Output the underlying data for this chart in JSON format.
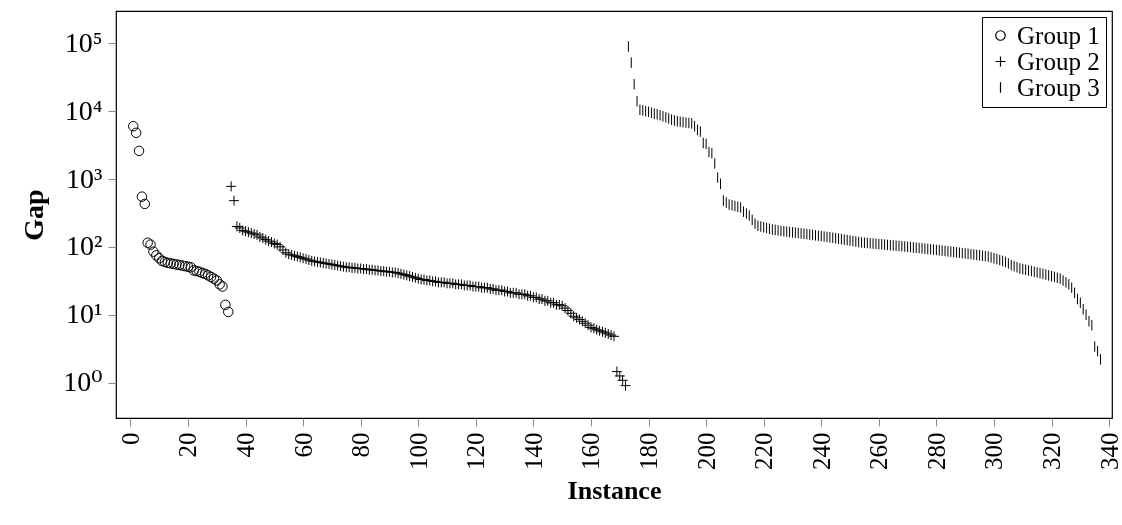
{
  "chart_data": {
    "type": "scatter",
    "xlabel": "Instance",
    "ylabel": "Gap",
    "log": "y",
    "grid": false,
    "legend": "top right",
    "xlim": [
      -5,
      341
    ],
    "xticks": [
      0,
      20,
      40,
      60,
      80,
      100,
      120,
      140,
      160,
      180,
      200,
      220,
      240,
      260,
      280,
      300,
      320,
      340
    ],
    "ylim": [
      0.3,
      300000
    ],
    "yticks": [
      {
        "value": 1,
        "label": "10⁰"
      },
      {
        "value": 10,
        "label": "10¹"
      },
      {
        "value": 100,
        "label": "10²"
      },
      {
        "value": 1000,
        "label": "10³"
      },
      {
        "value": 10000,
        "label": "10⁴"
      },
      {
        "value": 100000,
        "label": "10⁵"
      }
    ],
    "series": [
      {
        "name": "Group 1",
        "color": "#000000",
        "marker": "circle",
        "x": [
          1,
          2,
          3,
          4,
          5,
          6,
          7,
          8,
          9,
          10,
          11,
          12,
          13,
          14,
          15,
          16,
          17,
          18,
          19,
          20,
          21,
          22,
          23,
          24,
          25,
          26,
          27,
          28,
          29,
          30,
          31,
          32,
          33,
          34
        ],
        "values": [
          6000,
          4800,
          2600,
          550,
          430,
          115,
          108,
          85,
          75,
          68,
          62,
          60,
          58,
          57,
          56,
          55,
          54,
          53,
          52,
          51,
          50,
          45,
          44,
          43,
          41,
          40,
          38,
          36,
          34,
          32,
          28,
          26,
          14,
          11
        ]
      },
      {
        "name": "Group 2",
        "color": "#000000",
        "marker": "cross",
        "x": [
          35,
          36,
          37,
          38,
          39,
          40,
          41,
          42,
          43,
          44,
          45,
          46,
          47,
          48,
          49,
          50,
          51,
          52,
          53,
          54,
          55,
          56,
          57,
          58,
          59,
          60,
          61,
          62,
          63,
          64,
          65,
          66,
          67,
          68,
          69,
          70,
          71,
          72,
          73,
          74,
          75,
          76,
          77,
          78,
          79,
          80,
          81,
          82,
          83,
          84,
          85,
          86,
          87,
          88,
          89,
          90,
          91,
          92,
          93,
          94,
          95,
          96,
          97,
          98,
          99,
          100,
          101,
          102,
          103,
          104,
          105,
          106,
          107,
          108,
          109,
          110,
          111,
          112,
          113,
          114,
          115,
          116,
          117,
          118,
          119,
          120,
          121,
          122,
          123,
          124,
          125,
          126,
          127,
          128,
          129,
          130,
          131,
          132,
          133,
          134,
          135,
          136,
          137,
          138,
          139,
          140,
          141,
          142,
          143,
          144,
          145,
          146,
          147,
          148,
          149,
          150,
          151,
          152,
          153,
          154,
          155,
          156,
          157,
          158,
          159,
          160,
          161,
          162,
          163,
          164,
          165,
          166,
          167,
          168,
          169,
          170,
          171,
          172
        ],
        "values": [
          780,
          480,
          200,
          190,
          175,
          170,
          165,
          160,
          155,
          150,
          140,
          135,
          128,
          122,
          118,
          112,
          108,
          100,
          90,
          82,
          78,
          76,
          74,
          72,
          70,
          68,
          66,
          64,
          62,
          61,
          60,
          59,
          58,
          57,
          56,
          55,
          54,
          53,
          52,
          51,
          50,
          50,
          49,
          49,
          48,
          48,
          47,
          47,
          46,
          46,
          45,
          45,
          44,
          44,
          43,
          43,
          42,
          42,
          41,
          40,
          39,
          38,
          37,
          36,
          35,
          34,
          33,
          33,
          32,
          32,
          31,
          31,
          30,
          30,
          30,
          29,
          29,
          29,
          28,
          28,
          28,
          27,
          27,
          27,
          26,
          26,
          26,
          25,
          25,
          25,
          24,
          24,
          23,
          23,
          23,
          22,
          22,
          21,
          21,
          21,
          20,
          20,
          20,
          19,
          19,
          18,
          18,
          17,
          17,
          16,
          16,
          15,
          15,
          14,
          14,
          13.5,
          12.5,
          11.5,
          10.5,
          9.5,
          9,
          8.5,
          8,
          7.5,
          7,
          6.5,
          6.3,
          6,
          5.8,
          5.6,
          5.4,
          5.2,
          5,
          4.8,
          1.45,
          1.25,
          1.08,
          0.9
        ]
      },
      {
        "name": "Group 3",
        "color": "#000000",
        "x": [
          173,
          174,
          175,
          176,
          177,
          178,
          179,
          180,
          181,
          182,
          183,
          184,
          185,
          186,
          187,
          188,
          189,
          190,
          191,
          192,
          193,
          194,
          195,
          196,
          197,
          198,
          199,
          200,
          201,
          202,
          203,
          204,
          205,
          206,
          207,
          208,
          209,
          210,
          211,
          212,
          213,
          214,
          215,
          216,
          217,
          218,
          219,
          220,
          221,
          222,
          223,
          224,
          225,
          226,
          227,
          228,
          229,
          230,
          231,
          232,
          233,
          234,
          235,
          236,
          237,
          238,
          239,
          240,
          241,
          242,
          243,
          244,
          245,
          246,
          247,
          248,
          249,
          250,
          251,
          252,
          253,
          254,
          255,
          256,
          257,
          258,
          259,
          260,
          261,
          262,
          263,
          264,
          265,
          266,
          267,
          268,
          269,
          270,
          271,
          272,
          273,
          274,
          275,
          276,
          277,
          278,
          279,
          280,
          281,
          282,
          283,
          284,
          285,
          286,
          287,
          288,
          289,
          290,
          291,
          292,
          293,
          294,
          295,
          296,
          297,
          298,
          299,
          300,
          301,
          302,
          303,
          304,
          305,
          306,
          307,
          308,
          309,
          310,
          311,
          312,
          313,
          314,
          315,
          316,
          317,
          318,
          319,
          320,
          321,
          322,
          323,
          324,
          325,
          326,
          327,
          328,
          329,
          330,
          331,
          332,
          333,
          334,
          335,
          336,
          337
        ],
        "values": [
          90000,
          52000,
          25000,
          14000,
          10500,
          10300,
          10000,
          9800,
          9500,
          9200,
          9000,
          8700,
          8400,
          8100,
          7800,
          7500,
          7300,
          7100,
          7000,
          6900,
          6800,
          6700,
          6600,
          6000,
          5300,
          5000,
          3400,
          3300,
          2500,
          2400,
          1700,
          1050,
          850,
          480,
          450,
          420,
          410,
          400,
          390,
          380,
          330,
          310,
          290,
          250,
          220,
          205,
          200,
          195,
          190,
          185,
          180,
          178,
          175,
          172,
          170,
          168,
          166,
          164,
          162,
          160,
          158,
          156,
          154,
          152,
          150,
          148,
          146,
          144,
          142,
          140,
          138,
          136,
          134,
          132,
          130,
          128,
          126,
          124,
          122,
          120,
          118,
          116,
          115,
          114,
          113,
          112,
          111,
          110,
          109,
          108,
          107,
          106,
          105,
          104,
          103,
          102,
          101,
          100,
          99,
          98,
          97,
          96,
          95,
          94,
          93,
          92,
          91,
          90,
          89,
          88,
          87,
          86,
          85,
          84,
          83,
          82,
          81,
          80,
          79,
          78,
          77,
          76,
          75,
          74,
          73,
          72,
          70,
          68,
          66,
          64,
          62,
          60,
          57,
          54,
          52,
          50,
          48,
          47,
          46,
          45,
          44,
          43,
          42,
          41,
          40,
          39,
          38,
          37,
          36,
          35,
          34,
          32,
          30,
          28,
          25,
          21,
          17,
          15,
          12,
          10,
          8,
          7,
          3.4,
          2.9,
          2.2
        ]
      }
    ]
  }
}
